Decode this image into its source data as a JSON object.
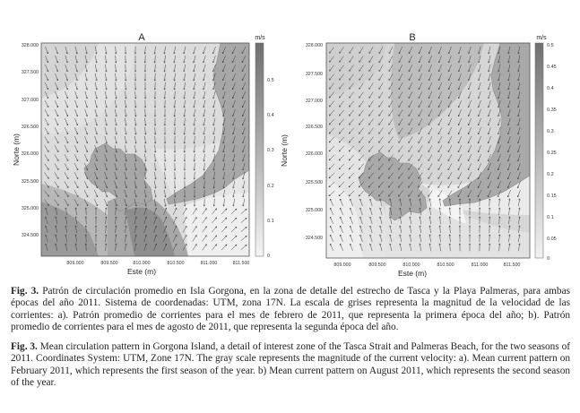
{
  "panels": [
    {
      "id": "A",
      "label": "A",
      "unit": "m/s",
      "ylabel": "Norte (m)",
      "xlabel": "Este (m)",
      "yticks": [
        "328.000",
        "327.500",
        "327.000",
        "326.500",
        "326.000",
        "325.500",
        "325.000",
        "324.500"
      ],
      "xticks": [
        "809.000",
        "809.500",
        "810.000",
        "810.500",
        "811.000",
        "811.500"
      ],
      "colorbar_ticks": [
        "0.5",
        "0.4",
        "0.3",
        "0.2",
        "0.1",
        "0"
      ],
      "colorbar_range": [
        0,
        0.55
      ]
    },
    {
      "id": "B",
      "label": "B",
      "unit": "m/s",
      "ylabel": "Norte (m)",
      "xlabel": "Este (m)",
      "yticks": [
        "328.000",
        "327.500",
        "327.000",
        "326.500",
        "326.000",
        "325.500",
        "325.000",
        "324.500"
      ],
      "xticks": [
        "809.000",
        "809.500",
        "810.000",
        "810.500",
        "811.000",
        "811.500"
      ],
      "colorbar_ticks": [
        "0.5",
        "0.45",
        "0.4",
        "0.35",
        "0.3",
        "0.25",
        "0.2",
        "0.15",
        "0.1",
        "0.05",
        "0"
      ],
      "colorbar_range": [
        0,
        0.5
      ]
    }
  ],
  "caption": {
    "es_label": "Fig. 3.",
    "es_text": "Patrón de circulación promedio en Isla Gorgona, en la zona de detalle del estrecho de Tasca y la Playa Palmeras, para ambas épocas del año 2011. Sistema de coordenadas: UTM, zona 17N. La escala de grises representa la magnitud de la velocidad de las corrientes: a). Patrón promedio de corrientes para el mes de febrero de 2011, que representa la primera época del año; b). Patrón promedio de corrientes para el mes de agosto de 2011, que representa la segunda época del año.",
    "en_label": "Fig. 3.",
    "en_text": "Mean circulation pattern in Gorgona Island, a detail of interest zone of the Tasca Strait and Palmeras Beach, for the two seasons of 2011. Coordinates System: UTM, Zone 17N. The gray scale represents the magnitude of the current velocity: a). Mean current pattern on February 2011, which represents the first season of the year. b) Mean current pattern on August 2011, which represents the second season of the year."
  }
}
